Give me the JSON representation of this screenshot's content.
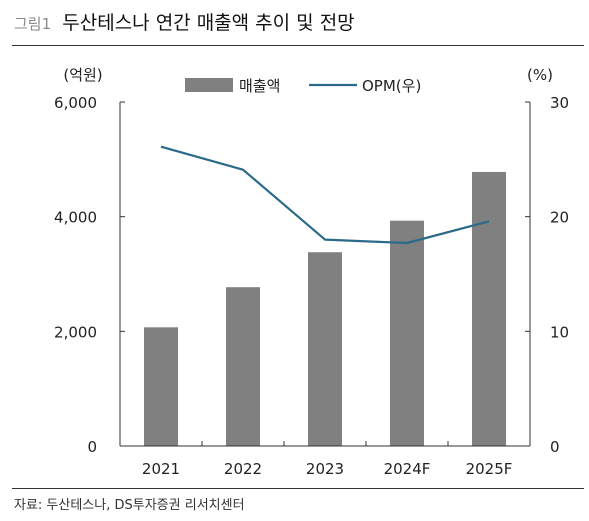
{
  "figure": {
    "number": "그림1",
    "title": "두산테스나 연간 매출액 추이 및 전망",
    "source": "자료: 두산테스나, DS투자증권 리서치센터"
  },
  "chart_data": {
    "type": "bar",
    "categories": [
      "2021",
      "2022",
      "2023",
      "2024F",
      "2025F"
    ],
    "series": [
      {
        "name": "매출액",
        "type": "bar",
        "axis": "left",
        "color": "#808080",
        "values": [
          2070,
          2770,
          3380,
          3930,
          4780
        ]
      },
      {
        "name": "OPM(우)",
        "type": "line",
        "axis": "right",
        "color": "#2b6a88",
        "values": [
          26.1,
          24.1,
          18.0,
          17.7,
          19.6
        ]
      }
    ],
    "y_left": {
      "unit": "(억원)",
      "range": [
        0,
        6000
      ],
      "ticks": [
        "0",
        "2,000",
        "4,000",
        "6,000"
      ],
      "tick_values": [
        0,
        2000,
        4000,
        6000
      ]
    },
    "y_right": {
      "unit": "(%)",
      "range": [
        0,
        30
      ],
      "ticks": [
        "0",
        "10",
        "20",
        "30"
      ],
      "tick_values": [
        0,
        10,
        20,
        30
      ]
    },
    "legend": {
      "position": "top-center",
      "items": [
        "매출액",
        "OPM(우)"
      ]
    },
    "grid": false
  }
}
